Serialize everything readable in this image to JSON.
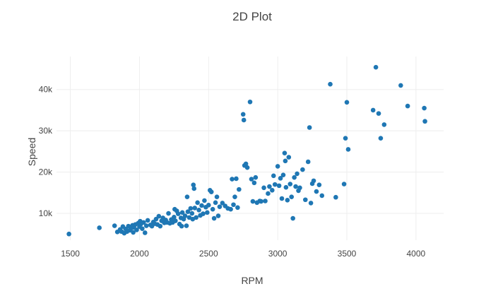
{
  "chart_data": {
    "type": "scatter",
    "title": "2D Plot",
    "xlabel": "RPM",
    "ylabel": "Speed",
    "xlim": [
      1400,
      4200
    ],
    "ylim": [
      3500,
      48000
    ],
    "xticks": [
      1500,
      2000,
      2500,
      3000,
      3500,
      4000
    ],
    "xtick_labels": [
      "1500",
      "2000",
      "2500",
      "3000",
      "3500",
      "4000"
    ],
    "yticks": [
      10000,
      20000,
      30000,
      40000
    ],
    "ytick_labels": [
      "10k",
      "20k",
      "30k",
      "40k"
    ],
    "grid": true,
    "marker_color": "#1f77b4",
    "points": [
      [
        1490,
        5000
      ],
      [
        1710,
        6500
      ],
      [
        1820,
        7000
      ],
      [
        1840,
        5500
      ],
      [
        1860,
        6100
      ],
      [
        1870,
        5600
      ],
      [
        1880,
        6800
      ],
      [
        1890,
        5200
      ],
      [
        1900,
        6200
      ],
      [
        1910,
        5600
      ],
      [
        1920,
        6900
      ],
      [
        1930,
        5900
      ],
      [
        1940,
        6400
      ],
      [
        1950,
        7100
      ],
      [
        1955,
        5400
      ],
      [
        1960,
        6600
      ],
      [
        1970,
        7300
      ],
      [
        1980,
        6000
      ],
      [
        1990,
        7600
      ],
      [
        2000,
        6800
      ],
      [
        2005,
        8100
      ],
      [
        2010,
        7400
      ],
      [
        2020,
        6300
      ],
      [
        2030,
        7800
      ],
      [
        2040,
        5300
      ],
      [
        2050,
        7000
      ],
      [
        2060,
        8300
      ],
      [
        2080,
        7200
      ],
      [
        2090,
        6900
      ],
      [
        2100,
        7900
      ],
      [
        2110,
        7500
      ],
      [
        2120,
        8600
      ],
      [
        2130,
        7300
      ],
      [
        2140,
        9300
      ],
      [
        2150,
        6900
      ],
      [
        2160,
        8200
      ],
      [
        2170,
        8900
      ],
      [
        2180,
        7700
      ],
      [
        2190,
        8400
      ],
      [
        2200,
        7800
      ],
      [
        2210,
        10000
      ],
      [
        2220,
        7600
      ],
      [
        2230,
        8500
      ],
      [
        2240,
        7800
      ],
      [
        2250,
        9100
      ],
      [
        2255,
        11000
      ],
      [
        2260,
        8200
      ],
      [
        2270,
        10600
      ],
      [
        2280,
        9900
      ],
      [
        2290,
        7400
      ],
      [
        2300,
        8900
      ],
      [
        2305,
        6900
      ],
      [
        2310,
        10200
      ],
      [
        2320,
        8600
      ],
      [
        2330,
        9400
      ],
      [
        2340,
        7000
      ],
      [
        2345,
        14000
      ],
      [
        2350,
        10400
      ],
      [
        2360,
        9000
      ],
      [
        2370,
        11200
      ],
      [
        2380,
        10000
      ],
      [
        2385,
        8600
      ],
      [
        2390,
        16900
      ],
      [
        2395,
        16000
      ],
      [
        2400,
        11300
      ],
      [
        2410,
        9000
      ],
      [
        2420,
        12600
      ],
      [
        2430,
        10800
      ],
      [
        2440,
        9500
      ],
      [
        2450,
        11900
      ],
      [
        2460,
        9900
      ],
      [
        2470,
        13100
      ],
      [
        2480,
        11500
      ],
      [
        2490,
        10200
      ],
      [
        2500,
        12000
      ],
      [
        2510,
        15600
      ],
      [
        2520,
        15200
      ],
      [
        2530,
        11000
      ],
      [
        2540,
        8800
      ],
      [
        2550,
        12600
      ],
      [
        2560,
        14000
      ],
      [
        2570,
        9400
      ],
      [
        2580,
        11600
      ],
      [
        2600,
        12500
      ],
      [
        2620,
        11800
      ],
      [
        2640,
        11200
      ],
      [
        2660,
        11000
      ],
      [
        2670,
        18300
      ],
      [
        2680,
        12100
      ],
      [
        2690,
        14000
      ],
      [
        2700,
        18400
      ],
      [
        2710,
        11400
      ],
      [
        2720,
        15800
      ],
      [
        2750,
        34000
      ],
      [
        2755,
        32600
      ],
      [
        2760,
        21600
      ],
      [
        2770,
        22000
      ],
      [
        2780,
        21100
      ],
      [
        2800,
        37000
      ],
      [
        2810,
        18300
      ],
      [
        2820,
        12900
      ],
      [
        2830,
        17400
      ],
      [
        2840,
        18700
      ],
      [
        2850,
        12600
      ],
      [
        2870,
        13000
      ],
      [
        2880,
        12900
      ],
      [
        2900,
        16200
      ],
      [
        2910,
        13000
      ],
      [
        2930,
        14800
      ],
      [
        2940,
        16500
      ],
      [
        2960,
        15600
      ],
      [
        2970,
        19100
      ],
      [
        2980,
        17000
      ],
      [
        3000,
        21400
      ],
      [
        3010,
        16700
      ],
      [
        3020,
        18500
      ],
      [
        3030,
        13600
      ],
      [
        3040,
        19300
      ],
      [
        3050,
        24600
      ],
      [
        3055,
        22700
      ],
      [
        3060,
        16300
      ],
      [
        3070,
        13200
      ],
      [
        3080,
        23600
      ],
      [
        3090,
        17100
      ],
      [
        3100,
        14000
      ],
      [
        3110,
        8800
      ],
      [
        3120,
        18700
      ],
      [
        3130,
        16500
      ],
      [
        3140,
        19600
      ],
      [
        3150,
        15500
      ],
      [
        3160,
        16200
      ],
      [
        3180,
        20600
      ],
      [
        3200,
        13300
      ],
      [
        3220,
        22500
      ],
      [
        3230,
        30800
      ],
      [
        3240,
        12500
      ],
      [
        3250,
        17200
      ],
      [
        3260,
        17900
      ],
      [
        3280,
        15300
      ],
      [
        3300,
        16900
      ],
      [
        3320,
        14300
      ],
      [
        3380,
        41300
      ],
      [
        3420,
        13900
      ],
      [
        3480,
        17100
      ],
      [
        3490,
        28200
      ],
      [
        3500,
        36900
      ],
      [
        3510,
        25500
      ],
      [
        3690,
        35000
      ],
      [
        3710,
        45400
      ],
      [
        3730,
        34200
      ],
      [
        3745,
        28200
      ],
      [
        3770,
        31500
      ],
      [
        3890,
        41000
      ],
      [
        3940,
        36000
      ],
      [
        4060,
        35500
      ],
      [
        4065,
        32300
      ]
    ]
  }
}
